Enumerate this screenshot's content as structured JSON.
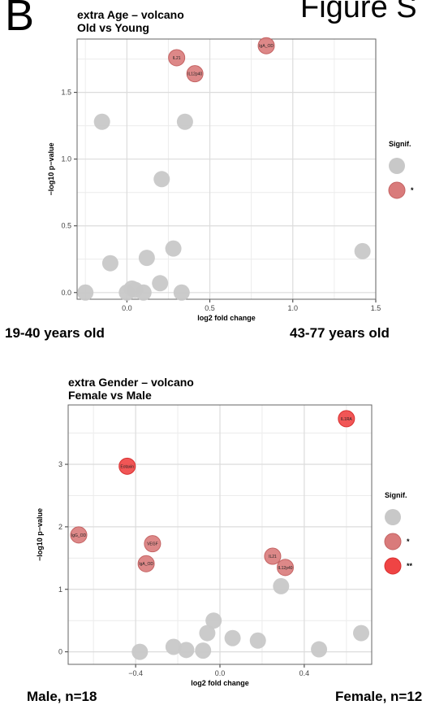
{
  "figure": {
    "panel_letter": "B",
    "title": "Figure S"
  },
  "chart_data": [
    {
      "type": "scatter",
      "title": "extra Age – volcano",
      "subtitle": "Old vs Young",
      "xlabel": "log2 fold change",
      "ylabel": "−log10 p−value",
      "xlim": [
        -0.3,
        1.5
      ],
      "ylim": [
        -0.05,
        1.9
      ],
      "xticks": [
        0.0,
        0.5,
        1.0,
        1.5
      ],
      "yticks": [
        0.0,
        0.5,
        1.0,
        1.5
      ],
      "xtick_labels": [
        "0.0",
        "0.5",
        "1.0",
        "1.5"
      ],
      "ytick_labels": [
        "0.0",
        "0.5",
        "1.0",
        "1.5"
      ],
      "grid": true,
      "legend": {
        "title": "Signif.",
        "position": "right",
        "entries": [
          {
            "label": "",
            "color": "#c8c8c8"
          },
          {
            "label": "*",
            "color": "#d97b7b"
          }
        ]
      },
      "group_labels": {
        "left": "19-40 years old",
        "right": "43-77 years old"
      },
      "points": [
        {
          "x": -0.25,
          "y": 0.0,
          "signif": "",
          "label": ""
        },
        {
          "x": 0.0,
          "y": 0.0,
          "signif": "",
          "label": ""
        },
        {
          "x": 0.05,
          "y": 0.02,
          "signif": "",
          "label": ""
        },
        {
          "x": 0.03,
          "y": 0.03,
          "signif": "",
          "label": ""
        },
        {
          "x": 0.1,
          "y": 0.0,
          "signif": "",
          "label": ""
        },
        {
          "x": 0.2,
          "y": 0.07,
          "signif": "",
          "label": ""
        },
        {
          "x": 0.33,
          "y": 0.0,
          "signif": "",
          "label": ""
        },
        {
          "x": -0.1,
          "y": 0.22,
          "signif": "",
          "label": ""
        },
        {
          "x": 0.12,
          "y": 0.26,
          "signif": "",
          "label": ""
        },
        {
          "x": 0.28,
          "y": 0.33,
          "signif": "",
          "label": ""
        },
        {
          "x": 0.21,
          "y": 0.85,
          "signif": "",
          "label": ""
        },
        {
          "x": -0.15,
          "y": 1.28,
          "signif": "",
          "label": ""
        },
        {
          "x": 0.35,
          "y": 1.28,
          "signif": "",
          "label": ""
        },
        {
          "x": 1.42,
          "y": 0.31,
          "signif": "",
          "label": ""
        },
        {
          "x": 0.3,
          "y": 1.76,
          "signif": "*",
          "label": "IL21"
        },
        {
          "x": 0.41,
          "y": 1.64,
          "signif": "*",
          "label": "IL12p40"
        },
        {
          "x": 0.84,
          "y": 1.85,
          "signif": "*",
          "label": "IgA_OD"
        }
      ]
    },
    {
      "type": "scatter",
      "title": "extra Gender – volcano",
      "subtitle": "Female vs Male",
      "xlabel": "log2 fold change",
      "ylabel": "−log10 p−value",
      "xlim": [
        -0.72,
        0.72
      ],
      "ylim": [
        -0.2,
        3.95
      ],
      "xticks": [
        -0.4,
        0.0,
        0.4
      ],
      "yticks": [
        0,
        1,
        2,
        3
      ],
      "xtick_labels": [
        "−0.4",
        "0.0",
        "0.4"
      ],
      "ytick_labels": [
        "0",
        "1",
        "2",
        "3"
      ],
      "grid": true,
      "legend": {
        "title": "Signif.",
        "position": "right",
        "entries": [
          {
            "label": "",
            "color": "#c8c8c8"
          },
          {
            "label": "*",
            "color": "#d97b7b"
          },
          {
            "label": "**",
            "color": "#ef4444"
          }
        ]
      },
      "group_labels": {
        "left": "Male, n=18",
        "right": "Female, n=12"
      },
      "points": [
        {
          "x": -0.38,
          "y": 0.0,
          "signif": "",
          "label": ""
        },
        {
          "x": -0.22,
          "y": 0.08,
          "signif": "",
          "label": ""
        },
        {
          "x": -0.16,
          "y": 0.03,
          "signif": "",
          "label": ""
        },
        {
          "x": -0.08,
          "y": 0.02,
          "signif": "",
          "label": ""
        },
        {
          "x": -0.06,
          "y": 0.3,
          "signif": "",
          "label": ""
        },
        {
          "x": -0.03,
          "y": 0.5,
          "signif": "",
          "label": ""
        },
        {
          "x": 0.06,
          "y": 0.22,
          "signif": "",
          "label": ""
        },
        {
          "x": 0.18,
          "y": 0.18,
          "signif": "",
          "label": ""
        },
        {
          "x": 0.29,
          "y": 1.05,
          "signif": "",
          "label": ""
        },
        {
          "x": 0.47,
          "y": 0.04,
          "signif": "",
          "label": ""
        },
        {
          "x": 0.67,
          "y": 0.3,
          "signif": "",
          "label": ""
        },
        {
          "x": -0.67,
          "y": 1.87,
          "signif": "*",
          "label": "IgG_OD"
        },
        {
          "x": -0.32,
          "y": 1.73,
          "signif": "*",
          "label": "VEGF"
        },
        {
          "x": -0.35,
          "y": 1.41,
          "signif": "*",
          "label": "IgA_OD"
        },
        {
          "x": 0.25,
          "y": 1.53,
          "signif": "*",
          "label": "IL21"
        },
        {
          "x": 0.31,
          "y": 1.35,
          "signif": "*",
          "label": "IL12p40"
        },
        {
          "x": -0.44,
          "y": 2.97,
          "signif": "**",
          "label": "Eotaxin"
        },
        {
          "x": 0.6,
          "y": 3.73,
          "signif": "**",
          "label": "IL1RA"
        }
      ]
    }
  ]
}
